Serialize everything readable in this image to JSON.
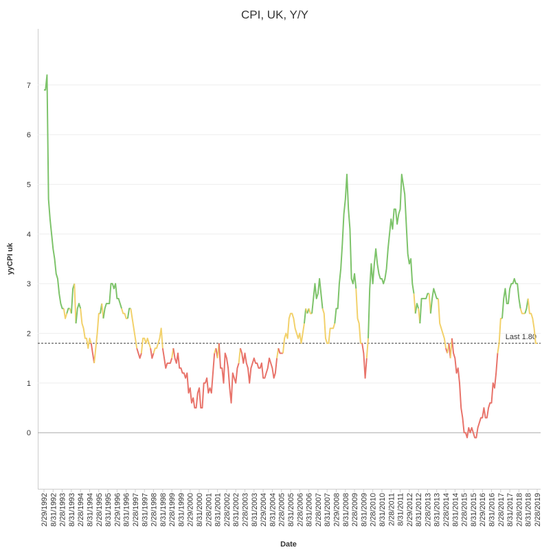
{
  "chart_data": {
    "type": "line",
    "title": "CPI, UK, Y/Y",
    "x_label": "Date",
    "y_label": "yyCPI uk",
    "ylim": [
      -1.13,
      8.13
    ],
    "yticks": [
      0,
      1,
      2,
      3,
      4,
      5,
      6,
      7
    ],
    "grid": true,
    "color_bands": [
      {
        "below": 1.7,
        "color": "#e8736a"
      },
      {
        "below": 2.5,
        "color": "#f2d16b"
      },
      {
        "color": "#7dc36a"
      }
    ],
    "reference_line": {
      "value": 1.8,
      "label": "Last 1.80"
    },
    "categories": [
      "2/29/1992",
      null,
      null,
      null,
      null,
      null,
      "8/31/1992",
      null,
      null,
      null,
      null,
      null,
      "2/28/1993",
      null,
      null,
      null,
      null,
      null,
      "8/31/1993",
      null,
      null,
      null,
      null,
      null,
      "2/28/1994",
      null,
      null,
      null,
      null,
      null,
      "8/31/1994",
      null,
      null,
      null,
      null,
      null,
      "2/28/1995",
      null,
      null,
      null,
      null,
      null,
      "8/31/1995",
      null,
      null,
      null,
      null,
      null,
      "2/29/1996",
      null,
      null,
      null,
      null,
      null,
      "8/31/1996",
      null,
      null,
      null,
      null,
      null,
      "2/28/1997",
      null,
      null,
      null,
      null,
      null,
      "8/31/1997",
      null,
      null,
      null,
      null,
      null,
      "2/28/1998",
      null,
      null,
      null,
      null,
      null,
      "8/31/1998",
      null,
      null,
      null,
      null,
      null,
      "2/28/1999",
      null,
      null,
      null,
      null,
      null,
      "8/31/1999",
      null,
      null,
      null,
      null,
      null,
      "2/29/2000",
      null,
      null,
      null,
      null,
      null,
      "8/31/2000",
      null,
      null,
      null,
      null,
      null,
      "2/28/2001",
      null,
      null,
      null,
      null,
      null,
      "8/31/2001",
      null,
      null,
      null,
      null,
      null,
      "2/28/2002",
      null,
      null,
      null,
      null,
      null,
      "8/31/2002",
      null,
      null,
      null,
      null,
      null,
      "2/28/2003",
      null,
      null,
      null,
      null,
      null,
      "8/31/2003",
      null,
      null,
      null,
      null,
      null,
      "2/29/2004",
      null,
      null,
      null,
      null,
      null,
      "8/31/2004",
      null,
      null,
      null,
      null,
      null,
      "2/28/2005",
      null,
      null,
      null,
      null,
      null,
      "8/31/2005",
      null,
      null,
      null,
      null,
      null,
      "2/28/2006",
      null,
      null,
      null,
      null,
      null,
      "8/31/2006",
      null,
      null,
      null,
      null,
      null,
      "2/28/2007",
      null,
      null,
      null,
      null,
      null,
      "8/31/2007",
      null,
      null,
      null,
      null,
      null,
      "2/29/2008",
      null,
      null,
      null,
      null,
      null,
      "8/31/2008",
      null,
      null,
      null,
      null,
      null,
      "2/28/2009",
      null,
      null,
      null,
      null,
      null,
      "8/31/2009",
      null,
      null,
      null,
      null,
      null,
      "2/28/2010",
      null,
      null,
      null,
      null,
      null,
      "8/31/2010",
      null,
      null,
      null,
      null,
      null,
      "2/28/2011",
      null,
      null,
      null,
      null,
      null,
      "8/31/2011",
      null,
      null,
      null,
      null,
      null,
      "2/29/2012",
      null,
      null,
      null,
      null,
      null,
      "8/31/2012",
      null,
      null,
      null,
      null,
      null,
      "2/28/2013",
      null,
      null,
      null,
      null,
      null,
      "8/31/2013",
      null,
      null,
      null,
      null,
      null,
      "2/28/2014",
      null,
      null,
      null,
      null,
      null,
      "8/31/2014",
      null,
      null,
      null,
      null,
      null,
      "2/28/2015",
      null,
      null,
      null,
      null,
      null,
      "8/31/2015",
      null,
      null,
      null,
      null,
      null,
      "2/29/2016",
      null,
      null,
      null,
      null,
      null,
      "8/31/2016",
      null,
      null,
      null,
      null,
      null,
      "2/28/2017",
      null,
      null,
      null,
      null,
      null,
      "8/31/2017",
      null,
      null,
      null,
      null,
      null,
      "2/28/2018",
      null,
      null,
      null,
      null,
      null,
      "8/31/2018",
      null,
      null,
      null,
      null,
      null,
      "2/28/2019"
    ],
    "values": [
      6.9,
      6.9,
      7.2,
      4.7,
      4.3,
      4.0,
      3.7,
      3.5,
      3.2,
      3.1,
      2.8,
      2.6,
      2.5,
      2.5,
      2.3,
      2.4,
      2.5,
      2.5,
      2.4,
      2.9,
      3.0,
      2.2,
      2.5,
      2.6,
      2.5,
      2.2,
      2.1,
      1.9,
      1.9,
      1.7,
      1.9,
      1.8,
      1.6,
      1.4,
      1.7,
      2.0,
      2.4,
      2.4,
      2.6,
      2.3,
      2.5,
      2.6,
      2.6,
      2.6,
      3.0,
      3.0,
      2.9,
      3.0,
      2.7,
      2.7,
      2.6,
      2.5,
      2.4,
      2.4,
      2.3,
      2.3,
      2.5,
      2.5,
      2.3,
      2.1,
      1.9,
      1.7,
      1.6,
      1.5,
      1.6,
      1.9,
      1.9,
      1.8,
      1.9,
      1.8,
      1.7,
      1.5,
      1.6,
      1.7,
      1.7,
      1.8,
      1.9,
      2.1,
      1.7,
      1.5,
      1.3,
      1.4,
      1.4,
      1.4,
      1.5,
      1.7,
      1.5,
      1.4,
      1.6,
      1.3,
      1.3,
      1.2,
      1.2,
      1.1,
      1.2,
      0.8,
      0.9,
      0.6,
      0.7,
      0.5,
      0.5,
      0.8,
      0.9,
      0.5,
      0.5,
      1.0,
      1.0,
      1.1,
      0.8,
      0.9,
      0.8,
      1.2,
      1.6,
      1.7,
      1.5,
      1.8,
      1.3,
      1.3,
      1.0,
      1.6,
      1.5,
      1.3,
      0.9,
      0.6,
      1.2,
      1.1,
      1.0,
      1.3,
      1.4,
      1.7,
      1.6,
      1.4,
      1.6,
      1.4,
      1.3,
      1.0,
      1.3,
      1.4,
      1.5,
      1.4,
      1.4,
      1.3,
      1.3,
      1.4,
      1.1,
      1.1,
      1.2,
      1.3,
      1.5,
      1.4,
      1.3,
      1.1,
      1.2,
      1.5,
      1.7,
      1.6,
      1.6,
      1.6,
      1.9,
      2.0,
      1.9,
      2.3,
      2.4,
      2.4,
      2.3,
      2.1,
      2.0,
      1.9,
      2.0,
      1.8,
      2.0,
      2.2,
      2.5,
      2.4,
      2.5,
      2.4,
      2.4,
      2.7,
      3.0,
      2.7,
      2.8,
      3.1,
      2.8,
      2.5,
      2.4,
      1.9,
      1.8,
      1.8,
      2.1,
      2.1,
      2.1,
      2.2,
      2.5,
      2.5,
      3.0,
      3.3,
      3.8,
      4.4,
      4.7,
      5.2,
      4.5,
      4.1,
      3.1,
      3.0,
      3.2,
      2.9,
      2.3,
      2.2,
      1.8,
      1.8,
      1.6,
      1.1,
      1.5,
      1.9,
      2.9,
      3.4,
      3.0,
      3.4,
      3.7,
      3.4,
      3.2,
      3.1,
      3.1,
      3.0,
      3.1,
      3.3,
      3.7,
      4.0,
      4.3,
      4.1,
      4.5,
      4.5,
      4.2,
      4.4,
      4.5,
      5.2,
      5.0,
      4.8,
      4.2,
      3.6,
      3.4,
      3.5,
      3.0,
      2.8,
      2.4,
      2.6,
      2.5,
      2.2,
      2.7,
      2.7,
      2.7,
      2.7,
      2.8,
      2.8,
      2.4,
      2.7,
      2.9,
      2.8,
      2.7,
      2.7,
      2.2,
      2.1,
      2.0,
      1.9,
      1.7,
      1.6,
      1.8,
      1.5,
      1.9,
      1.6,
      1.5,
      1.2,
      1.3,
      1.0,
      0.5,
      0.3,
      0.0,
      0.0,
      -0.1,
      0.1,
      0.0,
      0.1,
      0.0,
      -0.1,
      -0.1,
      0.1,
      0.2,
      0.3,
      0.3,
      0.5,
      0.3,
      0.3,
      0.5,
      0.6,
      0.6,
      1.0,
      0.9,
      1.2,
      1.6,
      1.8,
      2.3,
      2.3,
      2.7,
      2.9,
      2.6,
      2.6,
      2.9,
      3.0,
      3.0,
      3.1,
      3.0,
      3.0,
      2.7,
      2.5,
      2.4,
      2.4,
      2.4,
      2.5,
      2.7,
      2.4,
      2.4,
      2.3,
      2.1,
      1.8,
      1.8
    ]
  }
}
